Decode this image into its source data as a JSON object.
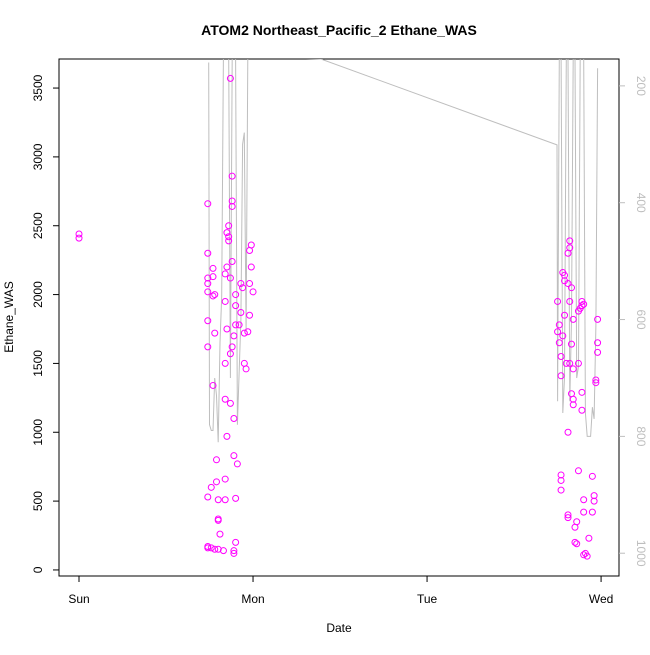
{
  "chart_data": {
    "type": "scatter",
    "title": "ATOM2 Northeast_Pacific_2 Ethane_WAS",
    "x_label": "Date",
    "y_label": "Ethane_WAS",
    "xlim": [
      -0.115,
      3.103
    ],
    "xticks": [
      {
        "value": 0,
        "label": "Sun"
      },
      {
        "value": 1,
        "label": "Mon"
      },
      {
        "value": 2,
        "label": "Tue"
      },
      {
        "value": 3,
        "label": "Wed"
      }
    ],
    "ylim": [
      -44,
      3711
    ],
    "yticks": [
      0,
      500,
      1000,
      1500,
      2000,
      2500,
      3000,
      3500
    ],
    "y2lim": [
      1039,
      154
    ],
    "y2ticks": [
      200,
      400,
      600,
      800,
      1000
    ],
    "y2_color": "#bebebe",
    "series": [
      {
        "type": "points",
        "color": "#ff00ff",
        "x": [
          0,
          0,
          0.74,
          0.74,
          0.74,
          0.74,
          0.74,
          0.74,
          0.74,
          0.74,
          0.74,
          0.74,
          0.77,
          0.77,
          0.78,
          0.77,
          0.78,
          0.77,
          0.76,
          0.76,
          0.78,
          0.79,
          0.79,
          0.8,
          0.81,
          0.8,
          0.8,
          0.8,
          0.85,
          0.86,
          0.86,
          0.86,
          0.85,
          0.84,
          0.84,
          0.85,
          0.84,
          0.84,
          0.85,
          0.84,
          0.84,
          0.83,
          0.87,
          0.87,
          0.87,
          0.88,
          0.88,
          0.88,
          0.88,
          0.87,
          0.9,
          0.89,
          0.88,
          0.89,
          0.89,
          0.9,
          0.9,
          0.89,
          0.89,
          0.9,
          0.9,
          0.93,
          0.94,
          0.93,
          0.92,
          0.95,
          0.95,
          0.96,
          0.91,
          0.99,
          0.98,
          0.99,
          0.98,
          0.98,
          0.97,
          1.0,
          2.75,
          2.76,
          2.75,
          2.76,
          2.77,
          2.77,
          2.77,
          2.77,
          2.77,
          2.79,
          2.78,
          2.79,
          2.79,
          2.78,
          2.8,
          2.81,
          2.81,
          2.81,
          2.82,
          2.82,
          2.81,
          2.81,
          2.83,
          2.82,
          2.84,
          2.83,
          2.82,
          2.84,
          2.83,
          2.84,
          2.84,
          2.86,
          2.85,
          2.85,
          2.86,
          2.87,
          2.89,
          2.9,
          2.89,
          2.88,
          2.87,
          2.87,
          2.89,
          2.89,
          2.9,
          2.9,
          2.91,
          2.9,
          2.92,
          2.93,
          2.98,
          2.98,
          2.98,
          2.97,
          2.97,
          2.95,
          2.96,
          2.96,
          2.95
        ],
        "values": [
          2440,
          2410,
          2660,
          2300,
          2120,
          2080,
          2020,
          1810,
          1620,
          530,
          170,
          160,
          2190,
          2130,
          2000,
          1990,
          1720,
          1340,
          600,
          160,
          150,
          640,
          800,
          510,
          260,
          370,
          360,
          150,
          2450,
          2500,
          2420,
          2390,
          2200,
          2150,
          1950,
          1750,
          1500,
          1240,
          970,
          660,
          510,
          140,
          1570,
          1210,
          3570,
          2860,
          2680,
          2640,
          2240,
          2120,
          1920,
          1700,
          1620,
          1100,
          830,
          520,
          200,
          140,
          120,
          2000,
          1780,
          2080,
          2050,
          1870,
          1780,
          1720,
          1500,
          1460,
          770,
          2360,
          2320,
          2200,
          2080,
          1850,
          1730,
          2020,
          1950,
          1780,
          1730,
          1650,
          1550,
          1410,
          690,
          650,
          580,
          2100,
          2160,
          2140,
          1850,
          1700,
          1500,
          1000,
          400,
          380,
          2390,
          2340,
          2300,
          2080,
          2050,
          1950,
          1820,
          1640,
          1500,
          1460,
          1280,
          1240,
          1200,
          350,
          310,
          200,
          190,
          720,
          1950,
          1930,
          1920,
          1900,
          1880,
          1500,
          1290,
          1160,
          510,
          420,
          120,
          110,
          100,
          230,
          1820,
          1650,
          1580,
          1380,
          1360,
          680,
          540,
          500,
          420
        ]
      },
      {
        "type": "line",
        "axis": "y2",
        "color": "#bebebe",
        "x": [
          0.745,
          0.75,
          0.76,
          0.77,
          0.78,
          0.79,
          0.8,
          0.81,
          0.82,
          0.83,
          0.86,
          0.87,
          0.88,
          0.9,
          0.91,
          0.93,
          0.94,
          0.95,
          0.96,
          0.97,
          0.99,
          1.39,
          2.747,
          2.75,
          2.76,
          2.77,
          2.78,
          2.79,
          2.8,
          2.81,
          2.82,
          2.83,
          2.84,
          2.85,
          2.86,
          2.87,
          2.88,
          2.9,
          2.91,
          2.92,
          2.94,
          2.95,
          2.96,
          2.97,
          2.98
        ],
        "values": [
          160,
          780,
          790,
          790,
          700,
          730,
          810,
          640,
          560,
          150,
          150,
          700,
          150,
          150,
          780,
          600,
          300,
          280,
          620,
          150,
          150,
          154,
          301,
          740,
          150,
          150,
          760,
          700,
          150,
          150,
          740,
          600,
          150,
          150,
          700,
          680,
          150,
          150,
          760,
          800,
          800,
          750,
          770,
          610,
          170
        ]
      }
    ]
  }
}
